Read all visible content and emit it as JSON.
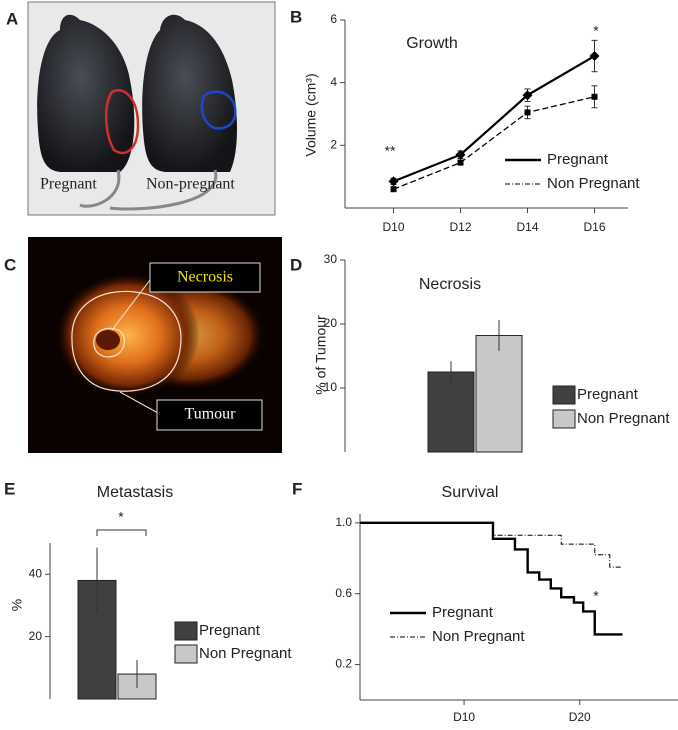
{
  "images": [
    {
      "panel": "A",
      "labels": [
        "Pregnant",
        "Non-pregnant"
      ]
    },
    {
      "panel": "C",
      "labels": [
        "Necrosis",
        "Tumour"
      ]
    }
  ],
  "chart_data": [
    {
      "panel": "B",
      "type": "line",
      "title": "Growth",
      "y_label": "Volume (cm³)",
      "categories": [
        "D10",
        "D12",
        "D14",
        "D16"
      ],
      "ylim": [
        0,
        6
      ],
      "yticks": [
        2,
        4,
        6
      ],
      "series": [
        {
          "name": "Pregnant",
          "color": "#000000",
          "marker": "diamond",
          "dash": false,
          "values": [
            0.85,
            1.7,
            3.6,
            4.85
          ],
          "errors": [
            0.1,
            0.12,
            0.2,
            0.5
          ]
        },
        {
          "name": "Non Pregnant",
          "color": "#000000",
          "marker": "square",
          "dash": true,
          "values": [
            0.6,
            1.45,
            3.05,
            3.55
          ],
          "errors": [
            0.05,
            0.08,
            0.2,
            0.35
          ]
        }
      ],
      "annotations": [
        "**",
        "*"
      ]
    },
    {
      "panel": "D",
      "type": "bar",
      "title": "Necrosis",
      "y_label": "% of Tumour",
      "ylim": [
        0,
        30
      ],
      "yticks": [
        10,
        20,
        30
      ],
      "series": [
        {
          "name": "Pregnant",
          "color": "#404040",
          "values": [
            12.5
          ],
          "errors": [
            1.7
          ]
        },
        {
          "name": "Non Pregnant",
          "color": "#c8c8c8",
          "values": [
            18.2
          ],
          "errors": [
            2.4
          ]
        }
      ]
    },
    {
      "panel": "E",
      "type": "bar",
      "title": "Metastasis",
      "y_label": "%",
      "ylim": [
        0,
        50
      ],
      "yticks": [
        20,
        40
      ],
      "series": [
        {
          "name": "Pregnant",
          "color": "#404040",
          "values": [
            38
          ],
          "errors": [
            10.5
          ]
        },
        {
          "name": "Non Pregnant",
          "color": "#c8c8c8",
          "values": [
            8
          ],
          "errors": [
            4.5
          ]
        }
      ],
      "annotations": [
        "*"
      ]
    },
    {
      "panel": "F",
      "type": "step",
      "title": "Survival",
      "xlim": [
        1,
        28.5
      ],
      "xticks": [
        {
          "value": 10,
          "label": "D10"
        },
        {
          "value": 20,
          "label": "D20"
        }
      ],
      "ylim": [
        0,
        1.05
      ],
      "yticks": [
        0.2,
        0.6,
        {
          "value": 1,
          "label": "1.0"
        }
      ],
      "series": [
        {
          "name": "Pregnant",
          "color": "#000000",
          "dash": false,
          "x": [
            1,
            12.5,
            14.4,
            15.5,
            16.5,
            17.5,
            18.4,
            19.5,
            20.3,
            21.3,
            23.7
          ],
          "values": [
            1,
            0.91,
            0.85,
            0.72,
            0.68,
            0.63,
            0.58,
            0.55,
            0.5,
            0.37,
            0.37
          ]
        },
        {
          "name": "Non Pregnant",
          "color": "#000000",
          "dash": true,
          "x": [
            1,
            12.5,
            18.4,
            21.3,
            22.6,
            23.7
          ],
          "values": [
            1,
            0.93,
            0.88,
            0.82,
            0.75,
            0.75
          ]
        }
      ],
      "annotations": [
        "*"
      ]
    }
  ]
}
